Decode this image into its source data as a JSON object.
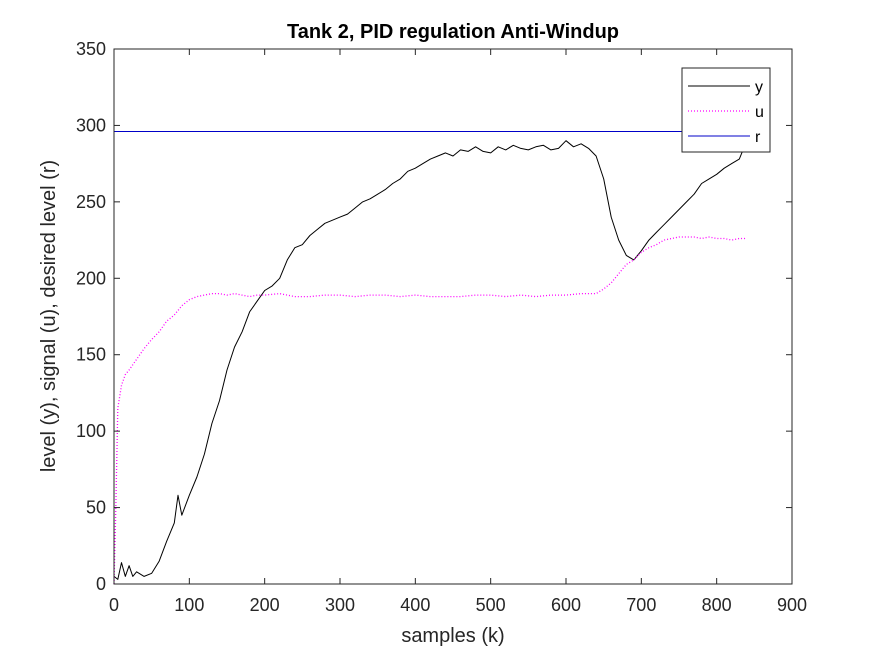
{
  "chart_data": {
    "type": "line",
    "title": "Tank 2, PID regulation Anti-Windup",
    "xlabel": "samples (k)",
    "ylabel": "level (y), signal (u), desired level (r)",
    "xlim": [
      0,
      900
    ],
    "ylim": [
      0,
      350
    ],
    "xticks": [
      0,
      100,
      200,
      300,
      400,
      500,
      600,
      700,
      800,
      900
    ],
    "yticks": [
      0,
      50,
      100,
      150,
      200,
      250,
      300,
      350
    ],
    "grid": false,
    "legend_position": "top-right",
    "series": [
      {
        "name": "y",
        "color": "#000000",
        "style": "solid",
        "x": [
          0,
          5,
          10,
          15,
          20,
          25,
          30,
          40,
          50,
          60,
          70,
          80,
          85,
          90,
          100,
          110,
          120,
          130,
          140,
          150,
          160,
          170,
          180,
          190,
          200,
          210,
          220,
          230,
          240,
          250,
          260,
          270,
          280,
          290,
          300,
          310,
          320,
          330,
          340,
          350,
          360,
          370,
          380,
          390,
          400,
          410,
          420,
          430,
          440,
          450,
          460,
          470,
          480,
          490,
          500,
          510,
          520,
          530,
          540,
          550,
          560,
          570,
          580,
          590,
          600,
          610,
          620,
          630,
          640,
          650,
          660,
          670,
          680,
          690,
          700,
          710,
          720,
          730,
          740,
          750,
          760,
          770,
          780,
          790,
          800,
          810,
          820,
          830,
          840
        ],
        "y": [
          5,
          3,
          14,
          5,
          12,
          5,
          8,
          5,
          7,
          15,
          28,
          40,
          58,
          45,
          58,
          70,
          85,
          105,
          120,
          140,
          155,
          165,
          178,
          185,
          192,
          195,
          200,
          212,
          220,
          222,
          228,
          232,
          236,
          238,
          240,
          242,
          246,
          250,
          252,
          255,
          258,
          262,
          265,
          270,
          272,
          275,
          278,
          280,
          282,
          280,
          284,
          283,
          286,
          283,
          282,
          286,
          284,
          287,
          285,
          284,
          286,
          287,
          284,
          285,
          290,
          286,
          288,
          285,
          280,
          265,
          240,
          225,
          215,
          212,
          218,
          225,
          230,
          235,
          240,
          245,
          250,
          255,
          262,
          265,
          268,
          272,
          275,
          278,
          290
        ]
      },
      {
        "name": "u",
        "color": "#ff00ff",
        "style": "dotted",
        "x": [
          0,
          2,
          5,
          10,
          15,
          20,
          30,
          40,
          50,
          60,
          70,
          80,
          90,
          100,
          110,
          120,
          130,
          140,
          150,
          160,
          170,
          180,
          190,
          200,
          220,
          240,
          260,
          280,
          300,
          320,
          340,
          360,
          380,
          400,
          420,
          440,
          460,
          480,
          500,
          520,
          540,
          560,
          580,
          600,
          620,
          640,
          650,
          660,
          670,
          680,
          690,
          700,
          710,
          720,
          730,
          740,
          750,
          760,
          770,
          780,
          790,
          800,
          810,
          820,
          830,
          840
        ],
        "y": [
          0,
          40,
          115,
          130,
          137,
          140,
          147,
          154,
          160,
          165,
          172,
          176,
          182,
          186,
          188,
          189,
          190,
          190,
          189,
          190,
          189,
          188,
          189,
          189,
          190,
          188,
          188,
          189,
          189,
          188,
          189,
          189,
          188,
          189,
          188,
          188,
          188,
          189,
          189,
          188,
          189,
          188,
          189,
          189,
          190,
          190,
          193,
          197,
          203,
          209,
          212,
          217,
          220,
          222,
          225,
          226,
          227,
          227,
          227,
          226,
          227,
          226,
          226,
          225,
          226,
          226
        ]
      },
      {
        "name": "r",
        "color": "#0000c8",
        "style": "solid",
        "x": [
          0,
          840
        ],
        "y": [
          296,
          296
        ]
      }
    ]
  }
}
